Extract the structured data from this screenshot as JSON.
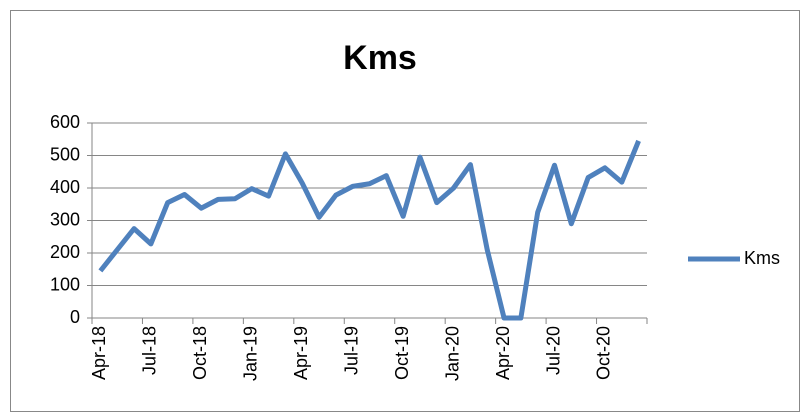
{
  "chart_data": {
    "type": "line",
    "title": "Kms",
    "categories": [
      "Apr-18",
      null,
      null,
      "Jul-18",
      null,
      null,
      "Oct-18",
      null,
      null,
      "Jan-19",
      null,
      null,
      "Apr-19",
      null,
      null,
      "Jul-19",
      null,
      null,
      "Oct-19",
      null,
      null,
      "Jan-20",
      null,
      null,
      "Apr-20",
      null,
      null,
      "Jul-20",
      null,
      null,
      "Oct-20",
      null,
      null
    ],
    "series": [
      {
        "name": "Kms",
        "color": "#4f81bd",
        "values": [
          145,
          210,
          275,
          228,
          355,
          380,
          338,
          365,
          367,
          398,
          375,
          505,
          415,
          310,
          378,
          405,
          413,
          438,
          313,
          495,
          355,
          400,
          472,
          210,
          0,
          0,
          325,
          470,
          290,
          432,
          462,
          418,
          545
        ]
      }
    ],
    "ylim": [
      0,
      600
    ],
    "yticks": [
      0,
      100,
      200,
      300,
      400,
      500,
      600
    ],
    "grid": true,
    "legend": "right"
  }
}
